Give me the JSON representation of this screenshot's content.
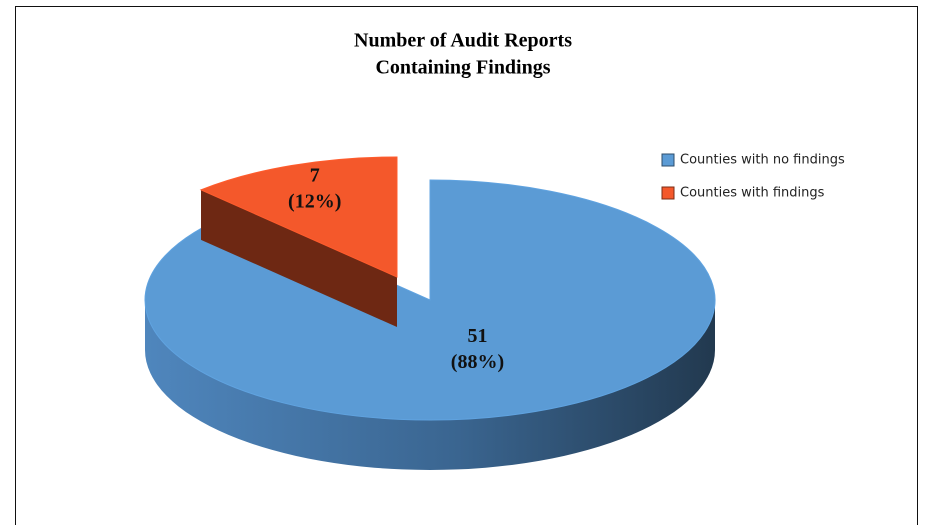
{
  "chart_data": {
    "type": "pie3d",
    "title": [
      "Number of Audit Reports",
      "Containing Findings"
    ],
    "categories": [
      "Counties with no findings",
      "Counties with findings"
    ],
    "values": [
      51,
      7
    ],
    "percent_labels": [
      "(88%)",
      "(12%)"
    ],
    "colors": [
      "#5b9bd5",
      "#f4582b"
    ],
    "exploded": [
      false,
      true
    ],
    "legend": "right"
  }
}
